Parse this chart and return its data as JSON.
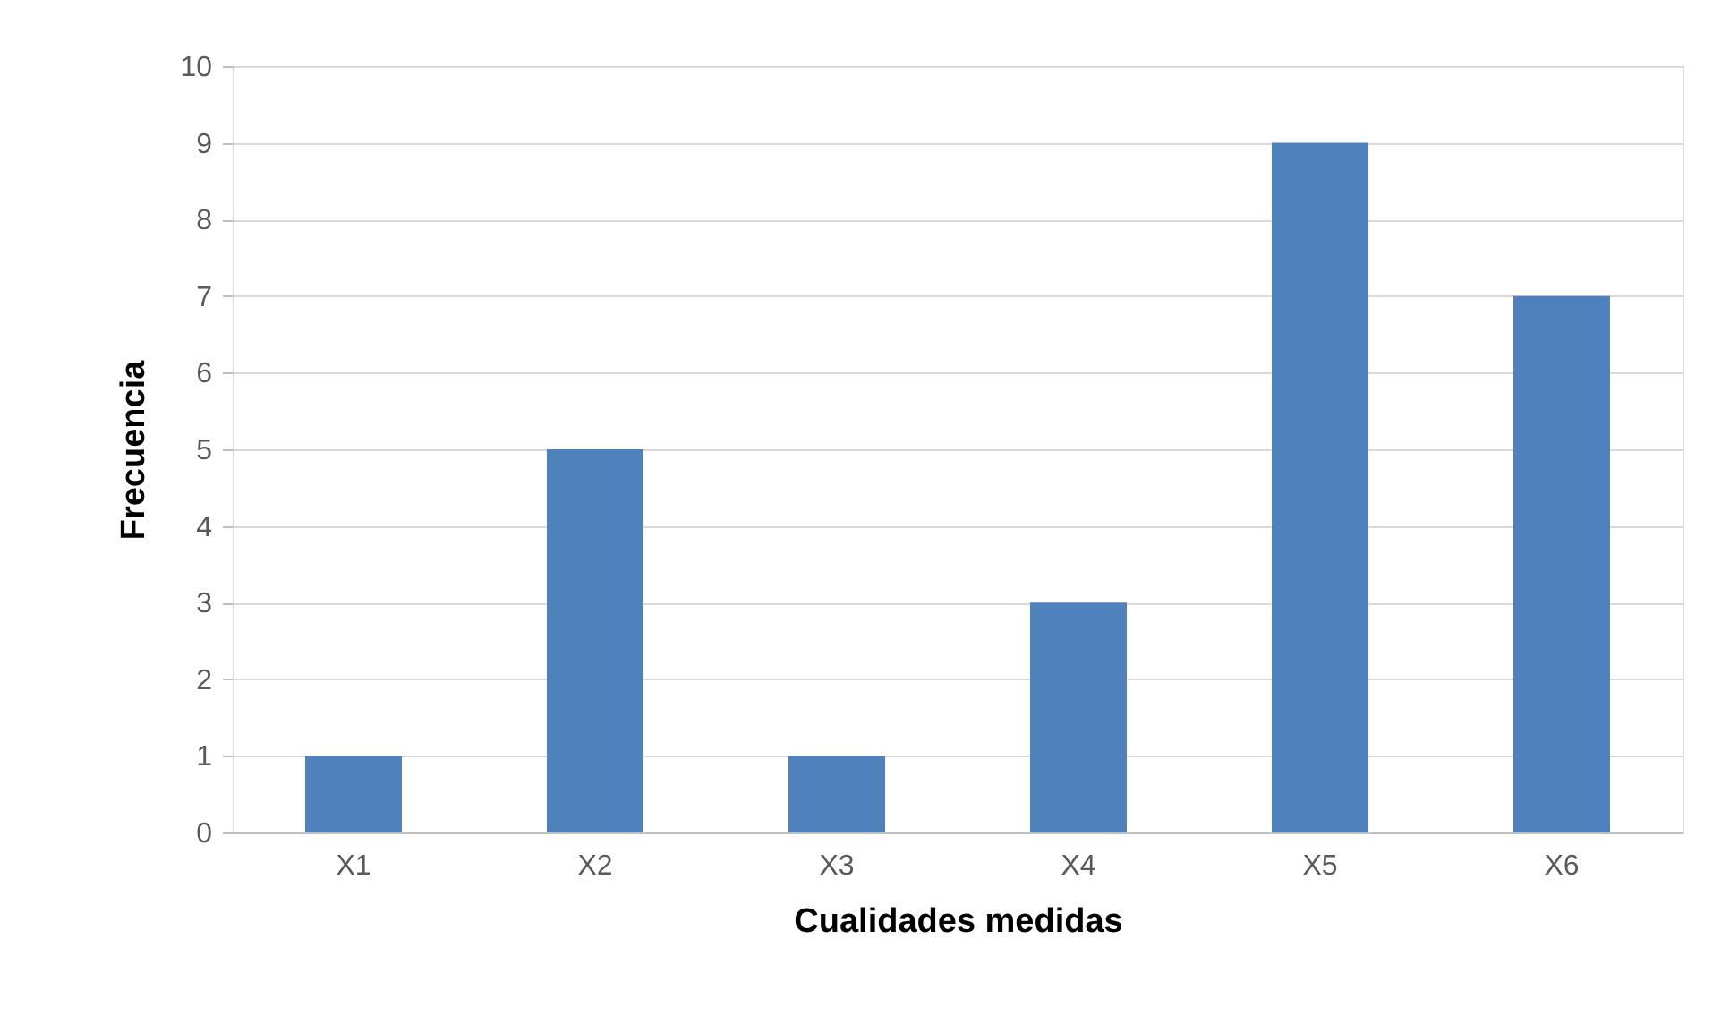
{
  "chart_data": {
    "type": "bar",
    "xlabel": "Cualidades medidas",
    "ylabel": "Frecuencia",
    "categories": [
      "X1",
      "X2",
      "X3",
      "X4",
      "X5",
      "X6"
    ],
    "values": [
      1,
      5,
      1,
      3,
      9,
      7
    ],
    "color": "#4f81bd",
    "ylim": [
      0,
      10
    ],
    "yticks": [
      0,
      1,
      2,
      3,
      4,
      5,
      6,
      7,
      8,
      9,
      10
    ],
    "grid": "y",
    "legend": false
  }
}
